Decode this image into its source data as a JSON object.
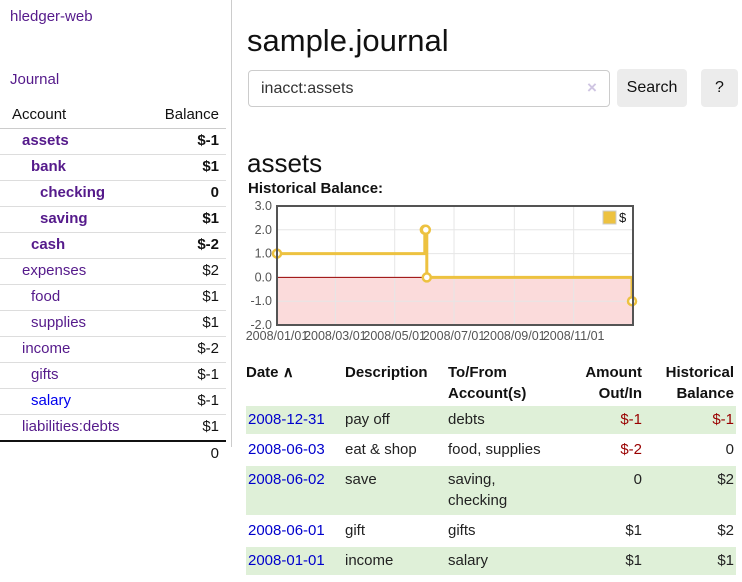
{
  "brand": "hledger-web",
  "nav": {
    "journal": "Journal"
  },
  "page": {
    "title": "sample.journal",
    "account_heading": "assets",
    "chart_label": "Historical Balance:"
  },
  "search": {
    "value": "inacct:assets",
    "clear_icon": "×",
    "submit_label": "Search",
    "help_label": "?"
  },
  "sidebar": {
    "col_account": "Account",
    "col_balance": "Balance",
    "accounts": [
      {
        "name": "assets",
        "balance": "$-1",
        "depth": 0,
        "bold": true,
        "link": "purple",
        "balance_class": "neg-strong"
      },
      {
        "name": "bank",
        "balance": "$1",
        "depth": 1,
        "bold": true,
        "link": "purple",
        "balance_class": ""
      },
      {
        "name": "checking",
        "balance": "0",
        "depth": 2,
        "bold": true,
        "link": "purple",
        "balance_class": ""
      },
      {
        "name": "saving",
        "balance": "$1",
        "depth": 2,
        "bold": true,
        "link": "purple",
        "balance_class": ""
      },
      {
        "name": "cash",
        "balance": "$-2",
        "depth": 1,
        "bold": true,
        "link": "purple",
        "balance_class": "neg-strong"
      },
      {
        "name": "expenses",
        "balance": "$2",
        "depth": 0,
        "bold": false,
        "link": "purple",
        "balance_class": ""
      },
      {
        "name": "food",
        "balance": "$1",
        "depth": 1,
        "bold": false,
        "link": "purple",
        "balance_class": ""
      },
      {
        "name": "supplies",
        "balance": "$1",
        "depth": 1,
        "bold": false,
        "link": "purple",
        "balance_class": ""
      },
      {
        "name": "income",
        "balance": "$-2",
        "depth": 0,
        "bold": false,
        "link": "purple",
        "balance_class": "neg-muted"
      },
      {
        "name": "gifts",
        "balance": "$-1",
        "depth": 1,
        "bold": false,
        "link": "purple",
        "balance_class": "neg-muted"
      },
      {
        "name": "salary",
        "balance": "$-1",
        "depth": 1,
        "bold": false,
        "link": "blue",
        "balance_class": "neg-muted"
      },
      {
        "name": "liabilities:debts",
        "balance": "$1",
        "depth": 0,
        "bold": false,
        "link": "purple",
        "balance_class": ""
      }
    ],
    "total": "0"
  },
  "chart_data": {
    "type": "line",
    "step": true,
    "title": "Historical Balance:",
    "series": [
      {
        "name": "$",
        "color": "#edc240",
        "points": [
          [
            "2008-01-01",
            1
          ],
          [
            "2008-06-01",
            2
          ],
          [
            "2008-06-02",
            2
          ],
          [
            "2008-06-03",
            0
          ],
          [
            "2008-12-31",
            -1
          ]
        ]
      }
    ],
    "x_range": [
      "2008-01-01",
      "2009-01-01"
    ],
    "ylim": [
      -2,
      3
    ],
    "y_ticks": [
      3.0,
      2.0,
      1.0,
      0.0,
      -1.0,
      -2.0
    ],
    "x_tick_dates": [
      "2008-01-01",
      "2008-03-01",
      "2008-05-01",
      "2008-07-01",
      "2008-09-01",
      "2008-11-01"
    ],
    "x_tick_labels": [
      "2008/01/01",
      "2008/03/01",
      "2008/05/01",
      "2008/07/01",
      "2008/09/01",
      "2008/11/01"
    ],
    "grid": true,
    "grid_color": "#e6e6e6",
    "border_color": "#545454",
    "tick_color": "#545454",
    "negative_fill": "#fbdbdb",
    "zero_line_color": "#990000",
    "legend_position": "top-right",
    "legend_label": "$"
  },
  "register": {
    "headers": {
      "date": "Date",
      "sort_icon": "∧",
      "description": "Description",
      "accounts": "To/From Account(s)",
      "amount": "Amount Out/In",
      "balance": "Historical Balance"
    },
    "rows": [
      {
        "date": "2008-12-31",
        "description": "pay off",
        "accounts": "debts",
        "amount": "$-1",
        "amount_neg": true,
        "balance": "$-1",
        "balance_neg": true,
        "shade": true,
        "wrap": false
      },
      {
        "date": "2008-06-03",
        "description": "eat & shop",
        "accounts": "food, supplies",
        "amount": "$-2",
        "amount_neg": true,
        "balance": "0",
        "balance_neg": false,
        "shade": false,
        "wrap": false
      },
      {
        "date": "2008-06-02",
        "description": "save",
        "accounts": "saving, checking",
        "amount": "0",
        "amount_neg": false,
        "balance": "$2",
        "balance_neg": false,
        "shade": true,
        "wrap": true
      },
      {
        "date": "2008-06-01",
        "description": "gift",
        "accounts": "gifts",
        "amount": "$1",
        "amount_neg": false,
        "balance": "$2",
        "balance_neg": false,
        "shade": false,
        "wrap": false
      },
      {
        "date": "2008-01-01",
        "description": "income",
        "accounts": "salary",
        "amount": "$1",
        "amount_neg": false,
        "balance": "$1",
        "balance_neg": false,
        "shade": true,
        "wrap": false
      }
    ]
  },
  "colors": {
    "link_purple": "#551a8b",
    "link_blue": "#0000ee",
    "date_blue": "#0000cc",
    "negative": "#990000",
    "negative_muted": "#ad5f5f",
    "row_green": "#dff0d8",
    "series_gold": "#edc240"
  }
}
